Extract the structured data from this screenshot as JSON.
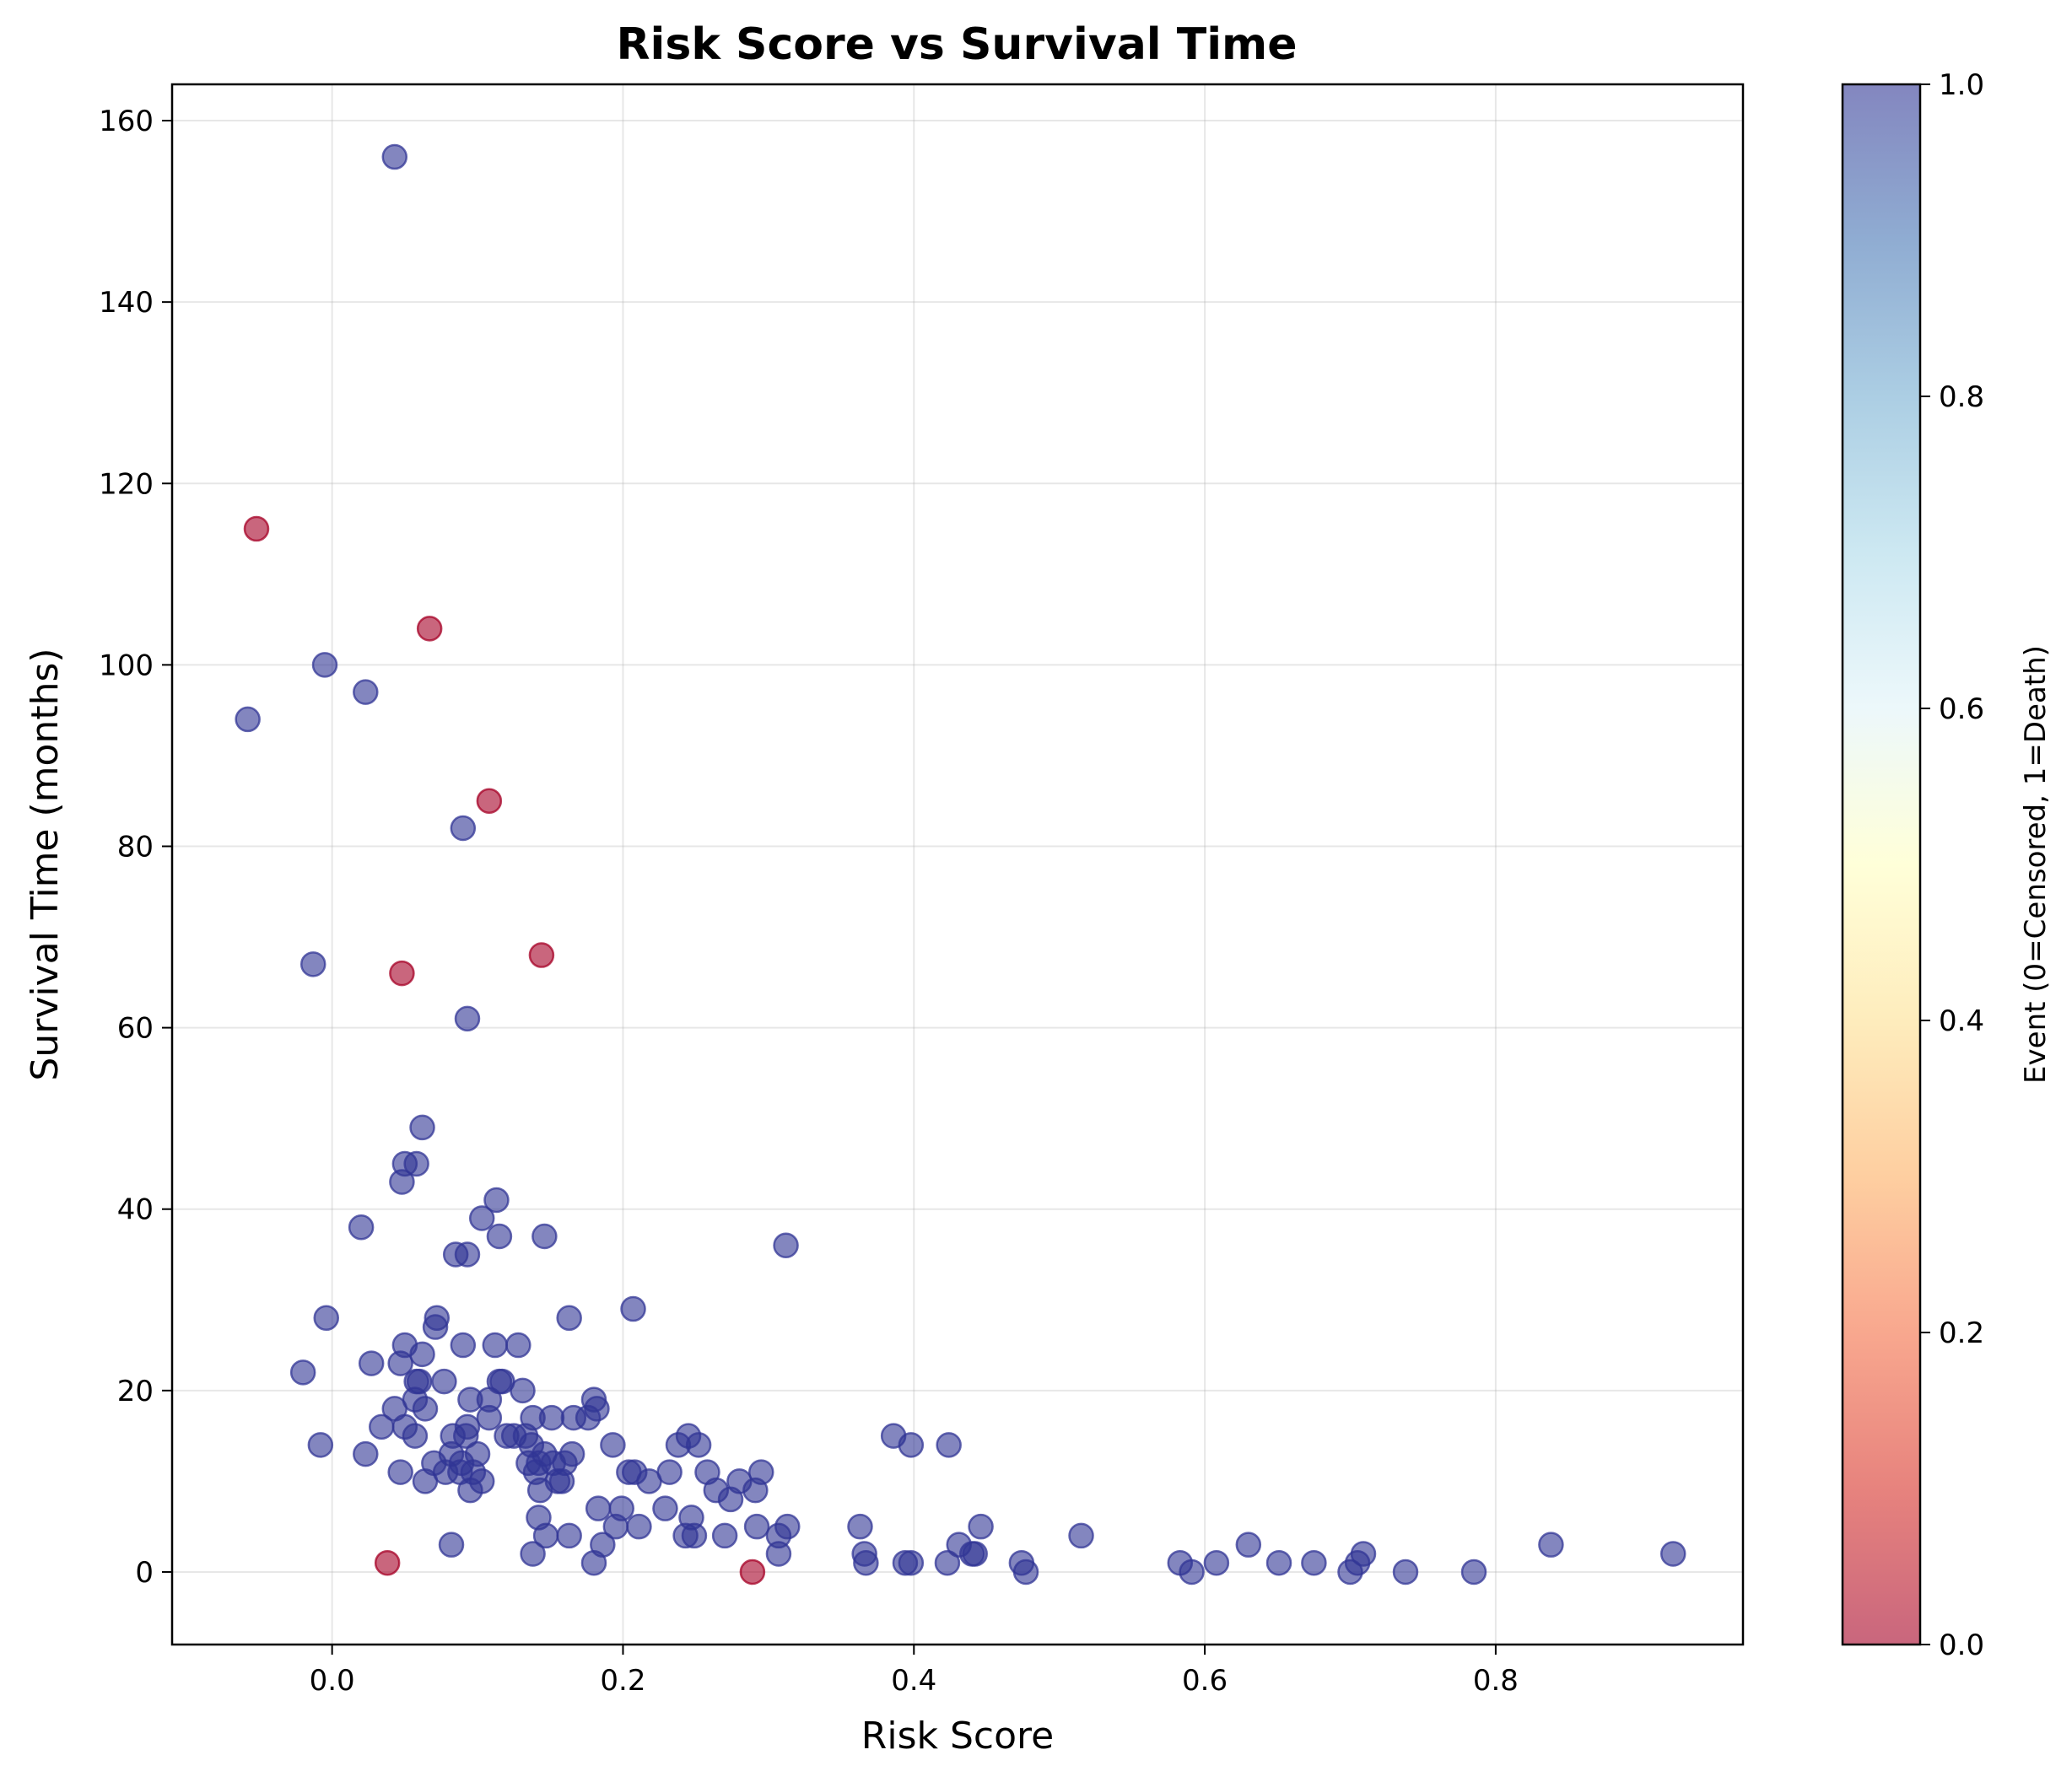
{
  "chart_data": {
    "type": "scatter",
    "title": "Risk Score vs Survival Time",
    "xlabel": "Risk Score",
    "ylabel": "Survival Time (months)",
    "xlim": [
      -0.11,
      0.97
    ],
    "ylim": [
      -8,
      164
    ],
    "xticks": [
      0.0,
      0.2,
      0.4,
      0.6,
      0.8
    ],
    "xtick_labels": [
      "0.0",
      "0.2",
      "0.4",
      "0.6",
      "0.8"
    ],
    "yticks": [
      0,
      20,
      40,
      60,
      80,
      100,
      120,
      140,
      160
    ],
    "ytick_labels": [
      "0",
      "20",
      "40",
      "60",
      "80",
      "100",
      "120",
      "140",
      "160"
    ],
    "grid": true,
    "colorbar": {
      "label": "Event (0=Censored, 1=Death)",
      "range": [
        0,
        1
      ],
      "ticks": [
        0.0,
        0.2,
        0.4,
        0.6,
        0.8,
        1.0
      ],
      "tick_labels": [
        "0.0",
        "0.2",
        "0.4",
        "0.6",
        "0.8",
        "1.0"
      ],
      "colormap": "RdYlBu",
      "stops": [
        "#a50026",
        "#d73027",
        "#f46d43",
        "#fdae61",
        "#fee090",
        "#ffffbf",
        "#e0f3f8",
        "#abd9e9",
        "#74add1",
        "#4575b4",
        "#313695"
      ],
      "alpha": 0.6
    },
    "series": [
      {
        "event": 1,
        "color": "#313695",
        "points": [
          [
            0.043,
            156
          ],
          [
            -0.058,
            94
          ],
          [
            -0.005,
            100
          ],
          [
            0.023,
            97
          ],
          [
            0.09,
            82
          ],
          [
            -0.013,
            67
          ],
          [
            0.093,
            61
          ],
          [
            0.062,
            49
          ],
          [
            0.05,
            45
          ],
          [
            0.058,
            45
          ],
          [
            0.048,
            43
          ],
          [
            0.113,
            41
          ],
          [
            0.103,
            39
          ],
          [
            0.02,
            38
          ],
          [
            0.115,
            37
          ],
          [
            0.146,
            37
          ],
          [
            0.312,
            36
          ],
          [
            0.085,
            35
          ],
          [
            0.093,
            35
          ],
          [
            -0.004,
            28
          ],
          [
            0.072,
            28
          ],
          [
            0.163,
            28
          ],
          [
            0.207,
            29
          ],
          [
            0.071,
            27
          ],
          [
            0.027,
            23
          ],
          [
            0.05,
            25
          ],
          [
            0.09,
            25
          ],
          [
            0.112,
            25
          ],
          [
            0.128,
            25
          ],
          [
            0.062,
            24
          ],
          [
            0.047,
            23
          ],
          [
            -0.02,
            22
          ],
          [
            0.058,
            21
          ],
          [
            0.06,
            21
          ],
          [
            0.077,
            21
          ],
          [
            0.115,
            21
          ],
          [
            0.117,
            21
          ],
          [
            0.131,
            20
          ],
          [
            0.057,
            19
          ],
          [
            0.095,
            19
          ],
          [
            0.108,
            19
          ],
          [
            0.18,
            19
          ],
          [
            0.043,
            18
          ],
          [
            0.064,
            18
          ],
          [
            0.182,
            18
          ],
          [
            0.138,
            17
          ],
          [
            0.151,
            17
          ],
          [
            0.166,
            17
          ],
          [
            0.176,
            17
          ],
          [
            0.108,
            17
          ],
          [
            0.034,
            16
          ],
          [
            0.05,
            16
          ],
          [
            0.093,
            16
          ],
          [
            0.057,
            15
          ],
          [
            0.083,
            15
          ],
          [
            0.092,
            15
          ],
          [
            0.12,
            15
          ],
          [
            0.125,
            15
          ],
          [
            0.133,
            15
          ],
          [
            0.245,
            15
          ],
          [
            0.386,
            15
          ],
          [
            -0.008,
            14
          ],
          [
            0.137,
            14
          ],
          [
            0.193,
            14
          ],
          [
            0.238,
            14
          ],
          [
            0.252,
            14
          ],
          [
            0.398,
            14
          ],
          [
            0.424,
            14
          ],
          [
            0.023,
            13
          ],
          [
            0.082,
            13
          ],
          [
            0.1,
            13
          ],
          [
            0.146,
            13
          ],
          [
            0.165,
            13
          ],
          [
            0.07,
            12
          ],
          [
            0.089,
            12
          ],
          [
            0.135,
            12
          ],
          [
            0.142,
            12
          ],
          [
            0.152,
            12
          ],
          [
            0.16,
            12
          ],
          [
            0.047,
            11
          ],
          [
            0.078,
            11
          ],
          [
            0.088,
            11
          ],
          [
            0.097,
            11
          ],
          [
            0.14,
            11
          ],
          [
            0.204,
            11
          ],
          [
            0.208,
            11
          ],
          [
            0.232,
            11
          ],
          [
            0.258,
            11
          ],
          [
            0.295,
            11
          ],
          [
            0.064,
            10
          ],
          [
            0.103,
            10
          ],
          [
            0.155,
            10
          ],
          [
            0.158,
            10
          ],
          [
            0.218,
            10
          ],
          [
            0.28,
            10
          ],
          [
            0.095,
            9
          ],
          [
            0.143,
            9
          ],
          [
            0.264,
            9
          ],
          [
            0.291,
            9
          ],
          [
            0.274,
            8
          ],
          [
            0.183,
            7
          ],
          [
            0.199,
            7
          ],
          [
            0.229,
            7
          ],
          [
            0.142,
            6
          ],
          [
            0.247,
            6
          ],
          [
            0.195,
            5
          ],
          [
            0.211,
            5
          ],
          [
            0.292,
            5
          ],
          [
            0.313,
            5
          ],
          [
            0.363,
            5
          ],
          [
            0.446,
            5
          ],
          [
            0.147,
            4
          ],
          [
            0.163,
            4
          ],
          [
            0.243,
            4
          ],
          [
            0.249,
            4
          ],
          [
            0.27,
            4
          ],
          [
            0.307,
            4
          ],
          [
            0.515,
            4
          ],
          [
            0.082,
            3
          ],
          [
            0.186,
            3
          ],
          [
            0.431,
            3
          ],
          [
            0.63,
            3
          ],
          [
            0.838,
            3
          ],
          [
            0.138,
            2
          ],
          [
            0.307,
            2
          ],
          [
            0.366,
            2
          ],
          [
            0.44,
            2
          ],
          [
            0.442,
            2
          ],
          [
            0.709,
            2
          ],
          [
            0.922,
            2
          ],
          [
            0.18,
            1
          ],
          [
            0.367,
            1
          ],
          [
            0.394,
            1
          ],
          [
            0.398,
            1
          ],
          [
            0.423,
            1
          ],
          [
            0.474,
            1
          ],
          [
            0.583,
            1
          ],
          [
            0.608,
            1
          ],
          [
            0.651,
            1
          ],
          [
            0.675,
            1
          ],
          [
            0.705,
            1
          ],
          [
            0.477,
            0
          ],
          [
            0.591,
            0
          ],
          [
            0.7,
            0
          ],
          [
            0.738,
            0
          ],
          [
            0.785,
            0
          ]
        ]
      },
      {
        "event": 0,
        "color": "#a50026",
        "points": [
          [
            -0.052,
            115
          ],
          [
            0.067,
            104
          ],
          [
            0.108,
            85
          ],
          [
            0.144,
            68
          ],
          [
            0.048,
            66
          ],
          [
            0.038,
            1
          ],
          [
            0.289,
            0
          ]
        ]
      }
    ],
    "marker": {
      "alpha": 0.6,
      "edge_alpha": 0.75
    }
  }
}
